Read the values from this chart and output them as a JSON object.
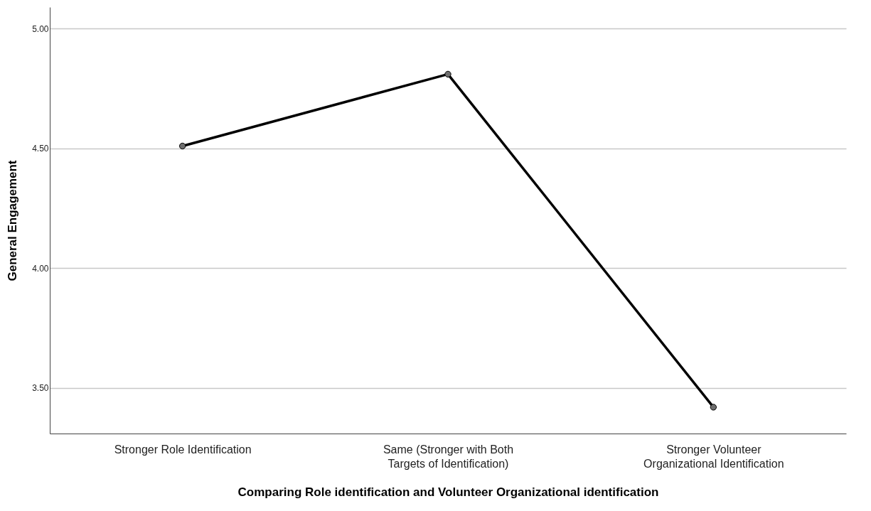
{
  "chart_data": {
    "type": "line",
    "xlabel": "Comparing Role identification and Volunteer Organizational identification",
    "ylabel": "General Engagement",
    "categories": [
      "Stronger Role Identification",
      "Same (Stronger with Both Targets of Identification)",
      "Stronger Volunteer Organizational Identification"
    ],
    "series": [
      {
        "color": "#000000",
        "values": [
          4.51,
          4.81,
          3.42
        ]
      }
    ],
    "ylim": [
      3.31,
      5.09
    ],
    "yticks": [
      {
        "value": 3.5,
        "label": "3.50"
      },
      {
        "value": 4,
        "label": "4.00"
      },
      {
        "value": 4.5,
        "label": "4.50"
      },
      {
        "value": 5,
        "label": "5.00"
      }
    ],
    "grid": "y",
    "marker": "circle",
    "line_style": "solid"
  }
}
